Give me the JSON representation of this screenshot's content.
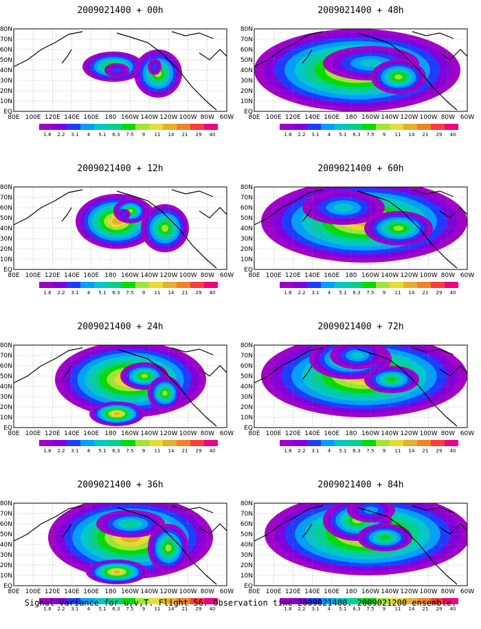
{
  "figure": {
    "footer": "Signal Variance for u,v,T. Flight 56. Observation time 2009021400. 2009021200 ensemble."
  },
  "lat_labels": [
    "80N",
    "70N",
    "60N",
    "50N",
    "40N",
    "30N",
    "20N",
    "10N",
    "EQ"
  ],
  "lon_labels": [
    "80E",
    "100E",
    "120E",
    "140E",
    "160E",
    "180",
    "160W",
    "140W",
    "120W",
    "100W",
    "80W",
    "60W"
  ],
  "colorbar": {
    "levels": [
      "1.8",
      "2.2",
      "3.1",
      "4",
      "5.1",
      "6.3",
      "7.5",
      "9",
      "11",
      "14",
      "21",
      "29",
      "40"
    ],
    "colors": [
      "#a000c8",
      "#8200dc",
      "#1e3cff",
      "#00a0ff",
      "#00c8c8",
      "#00d28c",
      "#00dc00",
      "#a0e632",
      "#e6dc32",
      "#e6af2d",
      "#f08228",
      "#fa3c3c",
      "#f00082"
    ]
  },
  "panels": [
    {
      "title": "2009021400 + 00h",
      "blobs": [
        [
          145,
          95,
          45,
          22,
          7
        ],
        [
          210,
          105,
          35,
          35,
          7
        ],
        [
          150,
          100,
          18,
          10,
          2
        ],
        [
          205,
          95,
          10,
          12,
          2
        ]
      ]
    },
    {
      "title": "2009021400 + 48h",
      "blobs": [
        [
          150,
          100,
          150,
          60,
          9
        ],
        [
          170,
          90,
          70,
          25,
          4
        ],
        [
          210,
          110,
          40,
          25,
          7
        ]
      ]
    },
    {
      "title": "2009021400 + 12h",
      "blobs": [
        [
          150,
          90,
          60,
          40,
          9
        ],
        [
          170,
          75,
          25,
          18,
          7
        ],
        [
          220,
          100,
          35,
          35,
          7
        ],
        [
          160,
          80,
          10,
          8,
          2
        ]
      ]
    },
    {
      "title": "2009021400 + 60h",
      "blobs": [
        [
          160,
          90,
          150,
          60,
          9
        ],
        [
          130,
          70,
          60,
          25,
          4
        ],
        [
          210,
          100,
          50,
          25,
          7
        ]
      ]
    },
    {
      "title": "2009021400 + 24h",
      "blobs": [
        [
          170,
          90,
          110,
          55,
          9
        ],
        [
          190,
          85,
          35,
          20,
          7
        ],
        [
          220,
          110,
          25,
          25,
          7
        ],
        [
          150,
          140,
          40,
          18,
          9
        ]
      ]
    },
    {
      "title": "2009021400 + 72h",
      "blobs": [
        [
          160,
          85,
          150,
          60,
          9
        ],
        [
          140,
          60,
          60,
          30,
          7
        ],
        [
          150,
          55,
          40,
          20,
          4
        ],
        [
          200,
          90,
          40,
          20,
          6
        ]
      ]
    },
    {
      "title": "2009021400 + 36h",
      "blobs": [
        [
          170,
          90,
          120,
          60,
          9
        ],
        [
          170,
          70,
          50,
          20,
          5
        ],
        [
          225,
          105,
          30,
          35,
          7
        ],
        [
          150,
          140,
          45,
          18,
          9
        ]
      ]
    },
    {
      "title": "2009021400 + 84h",
      "blobs": [
        [
          165,
          85,
          150,
          60,
          9
        ],
        [
          150,
          65,
          50,
          30,
          7
        ],
        [
          170,
          50,
          35,
          18,
          3
        ],
        [
          190,
          90,
          40,
          20,
          6
        ]
      ]
    }
  ]
}
